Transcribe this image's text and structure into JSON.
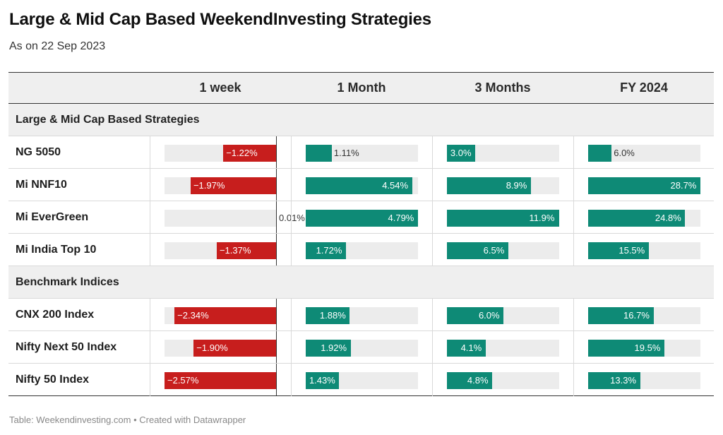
{
  "title": "Large & Mid Cap Based WeekendInvesting Strategies",
  "subtitle": "As on 22 Sep 2023",
  "footer": "Table: Weekendinvesting.com • Created with Datawrapper",
  "colors": {
    "positive": "#0e8a76",
    "negative": "#c71e1d",
    "track": "#ececec",
    "group_bg": "#efefef"
  },
  "chart_data": {
    "type": "table",
    "columns": [
      "1 week",
      "1 Month",
      "3 Months",
      "FY 2024"
    ],
    "column_ranges": [
      [
        -2.57,
        0.01
      ],
      [
        0,
        4.79
      ],
      [
        0,
        11.9
      ],
      [
        0,
        28.7
      ]
    ],
    "groups": [
      {
        "name": "Large & Mid Cap Based Strategies",
        "rows": [
          {
            "name": "NG 5050",
            "values": [
              -1.22,
              1.11,
              3.0,
              6.0
            ],
            "labels": [
              "−1.22%",
              "1.11%",
              "3.0%",
              "6.0%"
            ]
          },
          {
            "name": "Mi NNF10",
            "values": [
              -1.97,
              4.54,
              8.9,
              28.7
            ],
            "labels": [
              "−1.97%",
              "4.54%",
              "8.9%",
              "28.7%"
            ]
          },
          {
            "name": "Mi EverGreen",
            "values": [
              0.01,
              4.79,
              11.9,
              24.8
            ],
            "labels": [
              "0.01%",
              "4.79%",
              "11.9%",
              "24.8%"
            ]
          },
          {
            "name": "Mi India Top 10",
            "values": [
              -1.37,
              1.72,
              6.5,
              15.5
            ],
            "labels": [
              "−1.37%",
              "1.72%",
              "6.5%",
              "15.5%"
            ]
          }
        ]
      },
      {
        "name": "Benchmark Indices",
        "rows": [
          {
            "name": "CNX 200 Index",
            "values": [
              -2.34,
              1.88,
              6.0,
              16.7
            ],
            "labels": [
              "−2.34%",
              "1.88%",
              "6.0%",
              "16.7%"
            ]
          },
          {
            "name": "Nifty Next 50 Index",
            "values": [
              -1.9,
              1.92,
              4.1,
              19.5
            ],
            "labels": [
              "−1.90%",
              "1.92%",
              "4.1%",
              "19.5%"
            ]
          },
          {
            "name": "Nifty 50 Index",
            "values": [
              -2.57,
              1.43,
              4.8,
              13.3
            ],
            "labels": [
              "−2.57%",
              "1.43%",
              "4.8%",
              "13.3%"
            ]
          }
        ]
      }
    ]
  }
}
